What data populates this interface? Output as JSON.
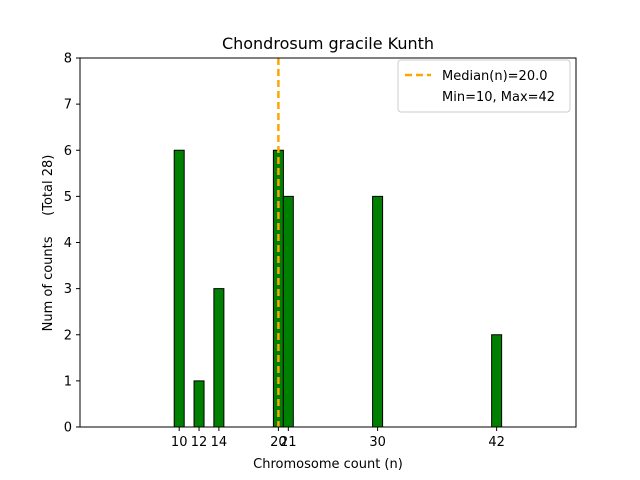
{
  "chart_data": {
    "type": "bar",
    "title": "Chondrosum gracile Kunth",
    "xlabel": "Chromosome count (n)",
    "ylabel": "Num of counts     (Total 28)",
    "x": [
      10,
      12,
      14,
      20,
      21,
      30,
      42
    ],
    "values": [
      6,
      1,
      3,
      6,
      5,
      5,
      2
    ],
    "xticks": [
      10,
      12,
      14,
      20,
      21,
      30,
      42
    ],
    "yticks": [
      0,
      1,
      2,
      3,
      4,
      5,
      6,
      7,
      8
    ],
    "xlim": [
      0,
      50
    ],
    "ylim": [
      0,
      8
    ],
    "grid": false,
    "bar_color": "#008000",
    "bar_edge_color": "#000000",
    "median": 20.0,
    "median_color": "#FFA500",
    "legend_position": "top-right",
    "legend": {
      "median_label": "Median(n)=20.0",
      "range_label": "Min=10, Max=42"
    }
  }
}
